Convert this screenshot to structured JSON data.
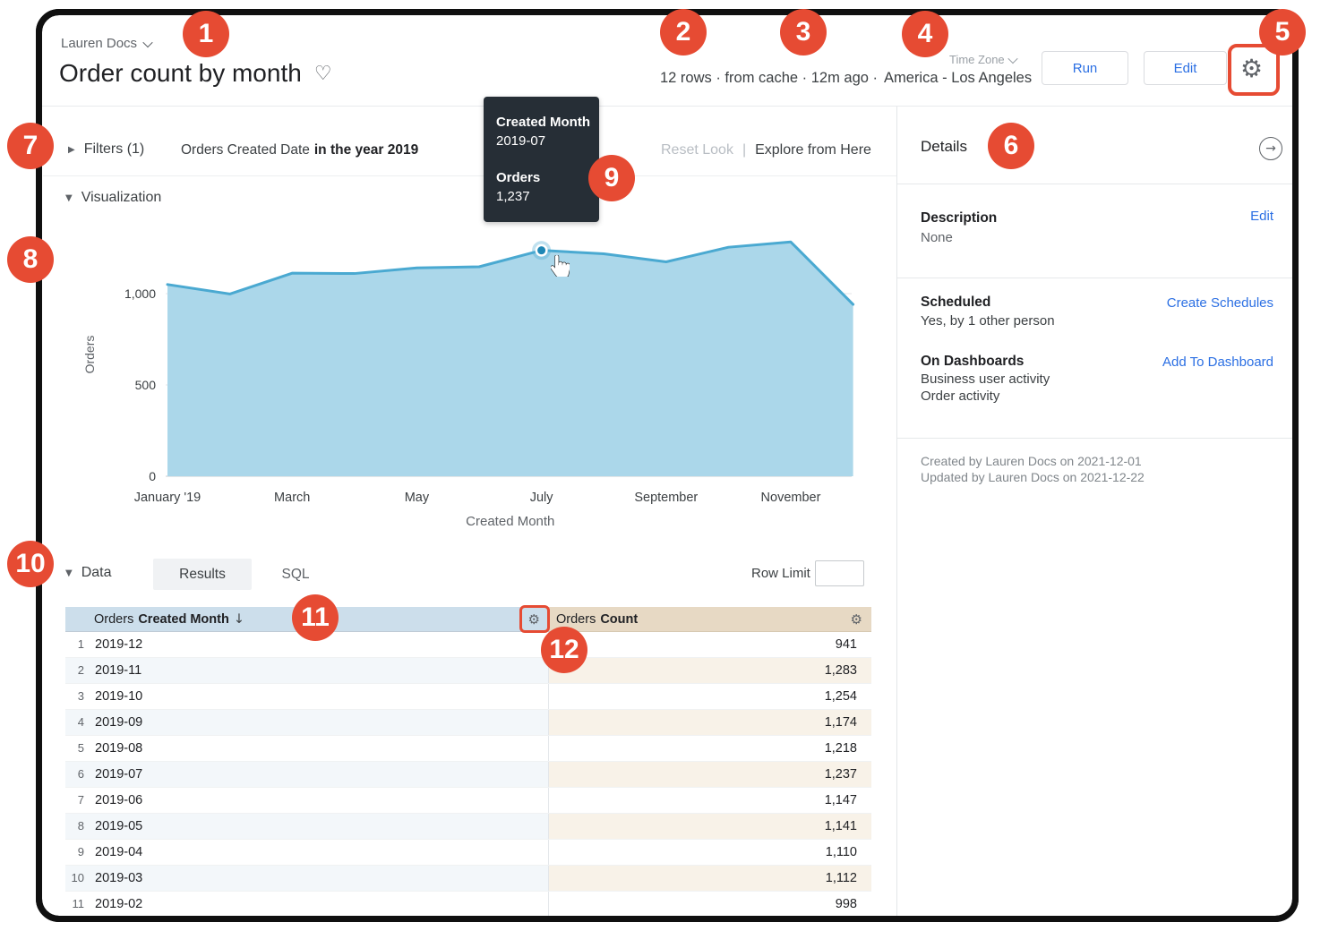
{
  "app": {
    "breadcrumb": "Lauren Docs",
    "title": "Order count by month",
    "stats": "12 rows · from cache · 12m ago ·",
    "timezone_label": "Time Zone",
    "timezone_value": "America - Los Angeles",
    "run_label": "Run",
    "edit_label": "Edit"
  },
  "icons": {
    "heart": "♡",
    "gear": "⚙",
    "arrow_right": "→",
    "triangle_down": "▼",
    "triangle_right": "▶"
  },
  "colors": {
    "badge_red": "#e64b33",
    "accent_blue": "#2b6fe3",
    "chart_line": "#4aa9d1",
    "chart_fill": "#abd7ea",
    "tooltip_bg": "#262e36",
    "dimension_header_bg": "#ccdeeb",
    "measure_header_bg": "#e7d9c4"
  },
  "filters": {
    "toggle_label": "Filters (1)",
    "field": "Orders Created Date",
    "condition": "in the year 2019",
    "reset_label": "Reset Look",
    "separator": "|",
    "explore_label": "Explore from Here"
  },
  "visualization": {
    "section_label": "Visualization"
  },
  "tooltip": {
    "dim_label": "Created Month",
    "dim_value": "2019-07",
    "measure_label": "Orders",
    "measure_value": "1,237"
  },
  "chart_data": {
    "type": "area",
    "title": "Order count by month",
    "x": [
      "2019-01",
      "2019-02",
      "2019-03",
      "2019-04",
      "2019-05",
      "2019-06",
      "2019-07",
      "2019-08",
      "2019-09",
      "2019-10",
      "2019-11",
      "2019-12"
    ],
    "values": [
      1050,
      998,
      1112,
      1110,
      1141,
      1147,
      1237,
      1218,
      1174,
      1254,
      1283,
      941
    ],
    "series_name": "Orders",
    "xlabel": "Created Month",
    "ylabel": "Orders",
    "ylim": [
      0,
      1350
    ],
    "grid": "horizontal",
    "legend": "none",
    "yticks": [
      {
        "value": 0,
        "label": "0"
      },
      {
        "value": 500,
        "label": "500"
      },
      {
        "value": 1000,
        "label": "1,000"
      }
    ],
    "x_ticks": [
      {
        "i": 0,
        "label": "January '19"
      },
      {
        "i": 2,
        "label": "March"
      },
      {
        "i": 4,
        "label": "May"
      },
      {
        "i": 6,
        "label": "July"
      },
      {
        "i": 8,
        "label": "September"
      },
      {
        "i": 10,
        "label": "November"
      }
    ],
    "highlight_index": 6,
    "line_color": "#4aa9d1",
    "fill_color": "#abd7ea",
    "highlight_dot_color": "#1f87b5"
  },
  "data_section": {
    "section_label": "Data",
    "tabs": [
      "Results",
      "SQL"
    ],
    "row_limit_label": "Row Limit",
    "row_limit_value": ""
  },
  "table": {
    "columns": [
      {
        "prefix": "Orders",
        "name": "Created Month",
        "sort_icon": "↓"
      },
      {
        "prefix": "Orders",
        "name": "Count",
        "sort_icon": ""
      }
    ],
    "rows": [
      {
        "n": "1",
        "month": "2019-12",
        "count": "941"
      },
      {
        "n": "2",
        "month": "2019-11",
        "count": "1,283"
      },
      {
        "n": "3",
        "month": "2019-10",
        "count": "1,254"
      },
      {
        "n": "4",
        "month": "2019-09",
        "count": "1,174"
      },
      {
        "n": "5",
        "month": "2019-08",
        "count": "1,218"
      },
      {
        "n": "6",
        "month": "2019-07",
        "count": "1,237"
      },
      {
        "n": "7",
        "month": "2019-06",
        "count": "1,147"
      },
      {
        "n": "8",
        "month": "2019-05",
        "count": "1,141"
      },
      {
        "n": "9",
        "month": "2019-04",
        "count": "1,110"
      },
      {
        "n": "10",
        "month": "2019-03",
        "count": "1,112"
      },
      {
        "n": "11",
        "month": "2019-02",
        "count": "998"
      }
    ]
  },
  "details": {
    "title": "Details",
    "description_label": "Description",
    "description_value": "None",
    "description_action": "Edit",
    "scheduled_label": "Scheduled",
    "scheduled_value": "Yes, by 1 other person",
    "scheduled_action": "Create Schedules",
    "dashboards_label": "On Dashboards",
    "dashboards": [
      "Business user activity",
      "Order activity"
    ],
    "dashboards_action": "Add To Dashboard",
    "created_line": "Created by Lauren Docs on 2021-12-01",
    "updated_line": "Updated by Lauren Docs on 2021-12-22"
  },
  "badges": [
    "1",
    "2",
    "3",
    "4",
    "5",
    "6",
    "7",
    "8",
    "9",
    "10",
    "11",
    "12"
  ]
}
